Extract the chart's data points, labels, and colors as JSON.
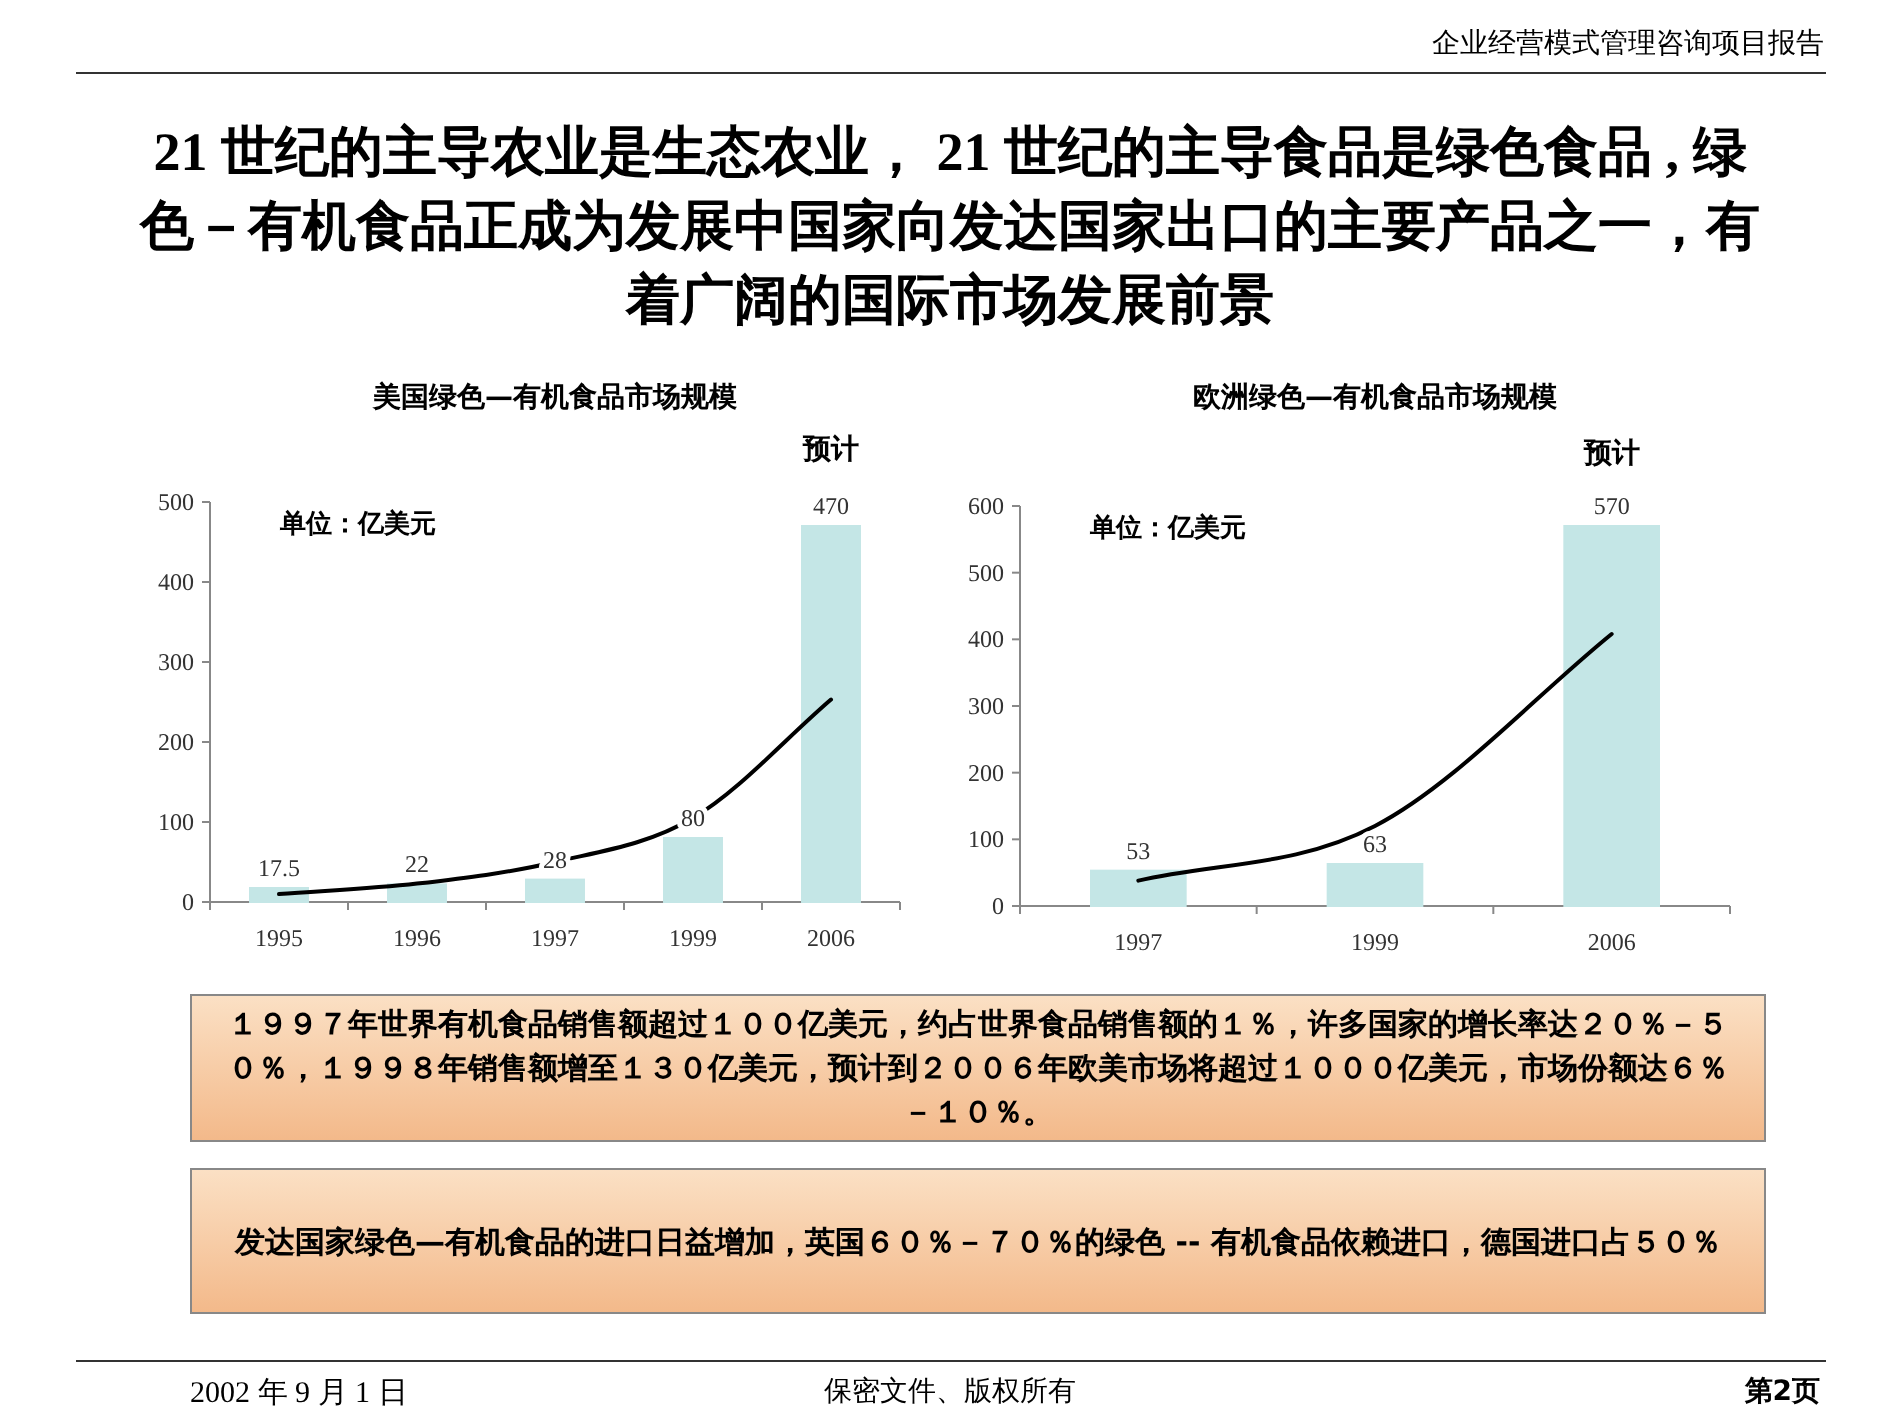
{
  "chart_data": [
    {
      "type": "other",
      "title": "21 世纪的主导农业是生态农业， 21 世纪的主导食品是绿色食品 , 绿色－有机食品正成为发展中国家向发达国家出口的主要产品之一，有着广阔的国际市场发展前景",
      "annotations": [
        "企业经营模式管理咨询项目报告"
      ]
    },
    {
      "type": "bar",
      "title": "美国绿色—有机食品市场规模",
      "categories": [
        "1995",
        "1996",
        "1997",
        "1999",
        "2006"
      ],
      "ylim": [
        0,
        500
      ],
      "yticks": [
        0,
        100,
        200,
        300,
        400,
        500
      ],
      "annotations": [
        "单位：亿美元",
        "预计"
      ],
      "series": [
        {
          "type": "bar",
          "color": "#c4e6e6",
          "values": [
            17.5,
            22,
            28,
            80,
            470
          ],
          "value_labels": [
            "17.5",
            "22",
            "28",
            "80",
            "470"
          ]
        },
        {
          "type": "line",
          "color": "#000000",
          "values": [
            10,
            23,
            50,
            105,
            253
          ]
        }
      ]
    },
    {
      "type": "bar",
      "title": "欧洲绿色—有机食品市场规模",
      "categories": [
        "1997",
        "1999",
        "2006"
      ],
      "ylim": [
        0,
        600
      ],
      "yticks": [
        0,
        100,
        200,
        300,
        400,
        500,
        600
      ],
      "annotations": [
        "单位：亿美元",
        "预计"
      ],
      "series": [
        {
          "type": "bar",
          "color": "#c4e6e6",
          "values": [
            53,
            63,
            570
          ],
          "value_labels": [
            "53",
            "63",
            "570"
          ]
        },
        {
          "type": "line",
          "color": "#000000",
          "values": [
            38,
            120,
            408
          ]
        }
      ]
    },
    {
      "type": "other",
      "annotations": [
        "１９９７年世界有机食品销售额超过１００亿美元，约占世界食品销售额的１％，许多国家的增长率达２０％－５０％，１９９８年销售额增至１３０亿美元，预计到２００６年欧美市场将超过１０００亿美元，市场份额达６％－１０％。",
        "发达国家绿色—有机食品的进口日益增加，英国６０％－７０％的绿色 -- 有机食品依赖进口，德国进口占５０％",
        "2002 年 9 月 1 日",
        "保密文件、版权所有",
        "第2页"
      ]
    }
  ]
}
